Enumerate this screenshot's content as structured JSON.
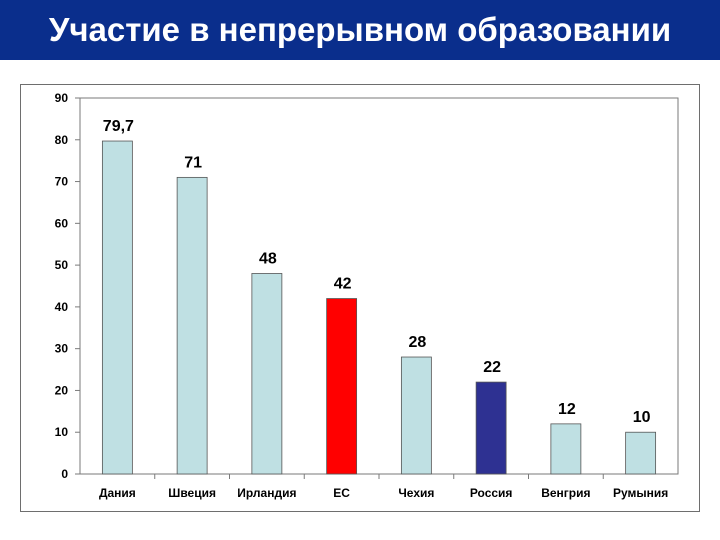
{
  "header": {
    "title": "Участие в непрерывном образовании",
    "background": "#0a2e8c"
  },
  "chart_data": {
    "type": "bar",
    "title": "",
    "xlabel": "",
    "ylabel": "",
    "ylim": [
      0,
      90
    ],
    "yticks": [
      0,
      10,
      20,
      30,
      40,
      50,
      60,
      70,
      80,
      90
    ],
    "grid": false,
    "legend": "none",
    "categories": [
      "Дания",
      "Швеция",
      "Ирландия",
      "ЕС",
      "Чехия",
      "Россия",
      "Венгрия",
      "Румыния"
    ],
    "values": [
      79.7,
      71,
      48,
      42,
      28,
      22,
      12,
      10
    ],
    "value_labels": [
      "79,7",
      "71",
      "48",
      "42",
      "28",
      "22",
      "12",
      "10"
    ],
    "colors": [
      "#bfe0e3",
      "#bfe0e3",
      "#bfe0e3",
      "#ff0000",
      "#bfe0e3",
      "#2e3192",
      "#bfe0e3",
      "#bfe0e3"
    ]
  }
}
